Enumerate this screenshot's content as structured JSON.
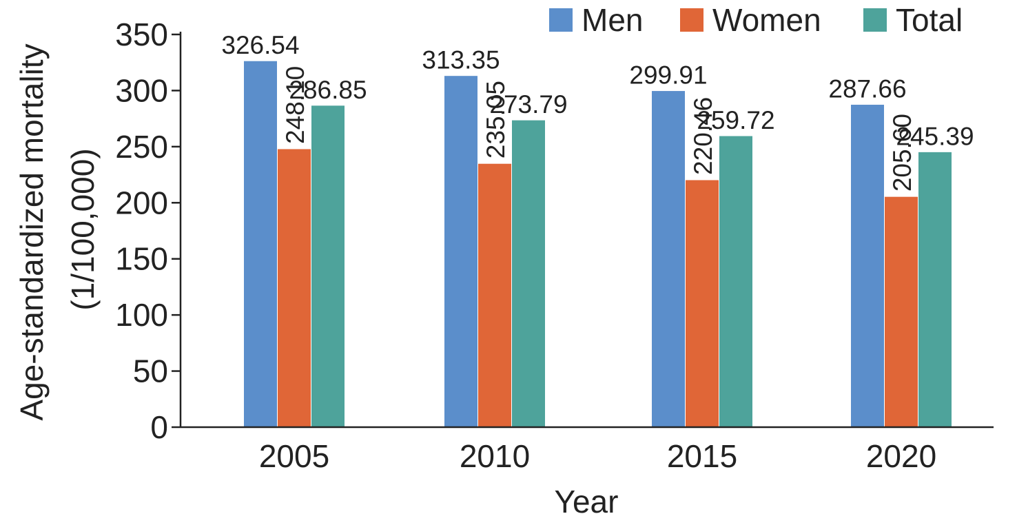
{
  "chart_data": {
    "type": "bar",
    "title": "",
    "xlabel": "Year",
    "ylabel_line1": "Age-standardized mortality",
    "ylabel_line2": "(1/100,000)",
    "categories": [
      "2005",
      "2010",
      "2015",
      "2020"
    ],
    "series": [
      {
        "name": "Men",
        "color": "#5b8ecb",
        "values": [
          326.54,
          313.35,
          299.91,
          287.66
        ],
        "labels": [
          "326.54",
          "313.35",
          "299.91",
          "287.66"
        ],
        "label_orientation": "horizontal"
      },
      {
        "name": "Women",
        "color": "#e06637",
        "values": [
          248.1,
          235.05,
          220.46,
          205.6
        ],
        "labels": [
          "248.10",
          "235.05",
          "220.46",
          "205.60"
        ],
        "label_orientation": "vertical"
      },
      {
        "name": "Total",
        "color": "#4ea39b",
        "values": [
          286.85,
          273.79,
          259.72,
          245.39
        ],
        "labels": [
          "286.85",
          "273.79",
          "259.72",
          "245.39"
        ],
        "label_orientation": "horizontal"
      }
    ],
    "ylim": [
      0,
      350
    ],
    "yticks": [
      "0",
      "50",
      "100",
      "150",
      "200",
      "250",
      "300",
      "350"
    ],
    "grid": false,
    "legend_position": "top-right"
  }
}
